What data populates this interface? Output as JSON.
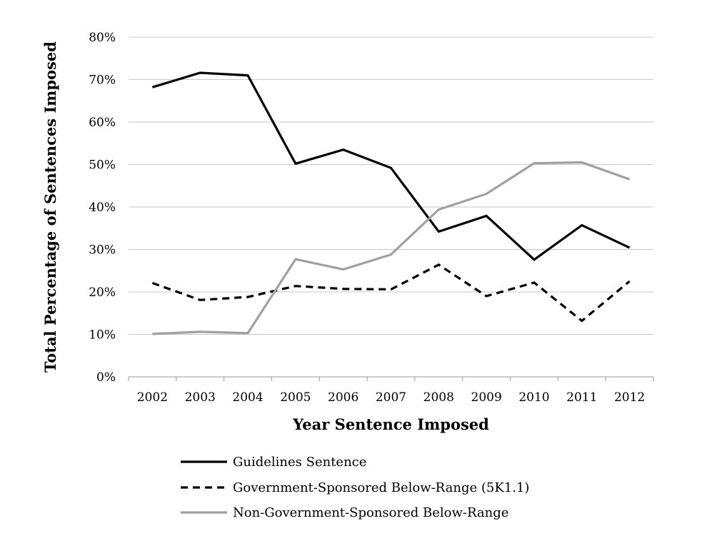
{
  "chart_data": {
    "type": "line",
    "title": "",
    "xlabel": "Year Sentence Imposed",
    "ylabel": "Total Percentage of Sentences Imposed",
    "categories": [
      "2002",
      "2003",
      "2004",
      "2005",
      "2006",
      "2007",
      "2008",
      "2009",
      "2010",
      "2011",
      "2012"
    ],
    "ylim": [
      0,
      80
    ],
    "yticks": [
      0,
      10,
      20,
      30,
      40,
      50,
      60,
      70,
      80
    ],
    "ytick_labels": [
      "0%",
      "10%",
      "20%",
      "30%",
      "40%",
      "50%",
      "60%",
      "70%",
      "80%"
    ],
    "grid": true,
    "legend_position": "bottom",
    "series": [
      {
        "name": "Guidelines Sentence",
        "color": "#000000",
        "dash": "solid",
        "values": [
          68.2,
          71.6,
          71.0,
          50.2,
          53.5,
          49.2,
          34.2,
          37.9,
          27.6,
          35.7,
          30.4
        ]
      },
      {
        "name": "Government-Sponsored Below-Range (5K1.1)",
        "color": "#000000",
        "dash": "dashed",
        "values": [
          22.1,
          18.1,
          18.8,
          21.4,
          20.7,
          20.6,
          26.4,
          19.0,
          22.2,
          13.2,
          22.5
        ]
      },
      {
        "name": "Non-Government-Sponsored Below-Range",
        "color": "#a0a0a0",
        "dash": "solid",
        "values": [
          10.1,
          10.6,
          10.3,
          27.7,
          25.3,
          28.8,
          39.4,
          43.1,
          50.3,
          50.5,
          46.5
        ]
      }
    ]
  }
}
